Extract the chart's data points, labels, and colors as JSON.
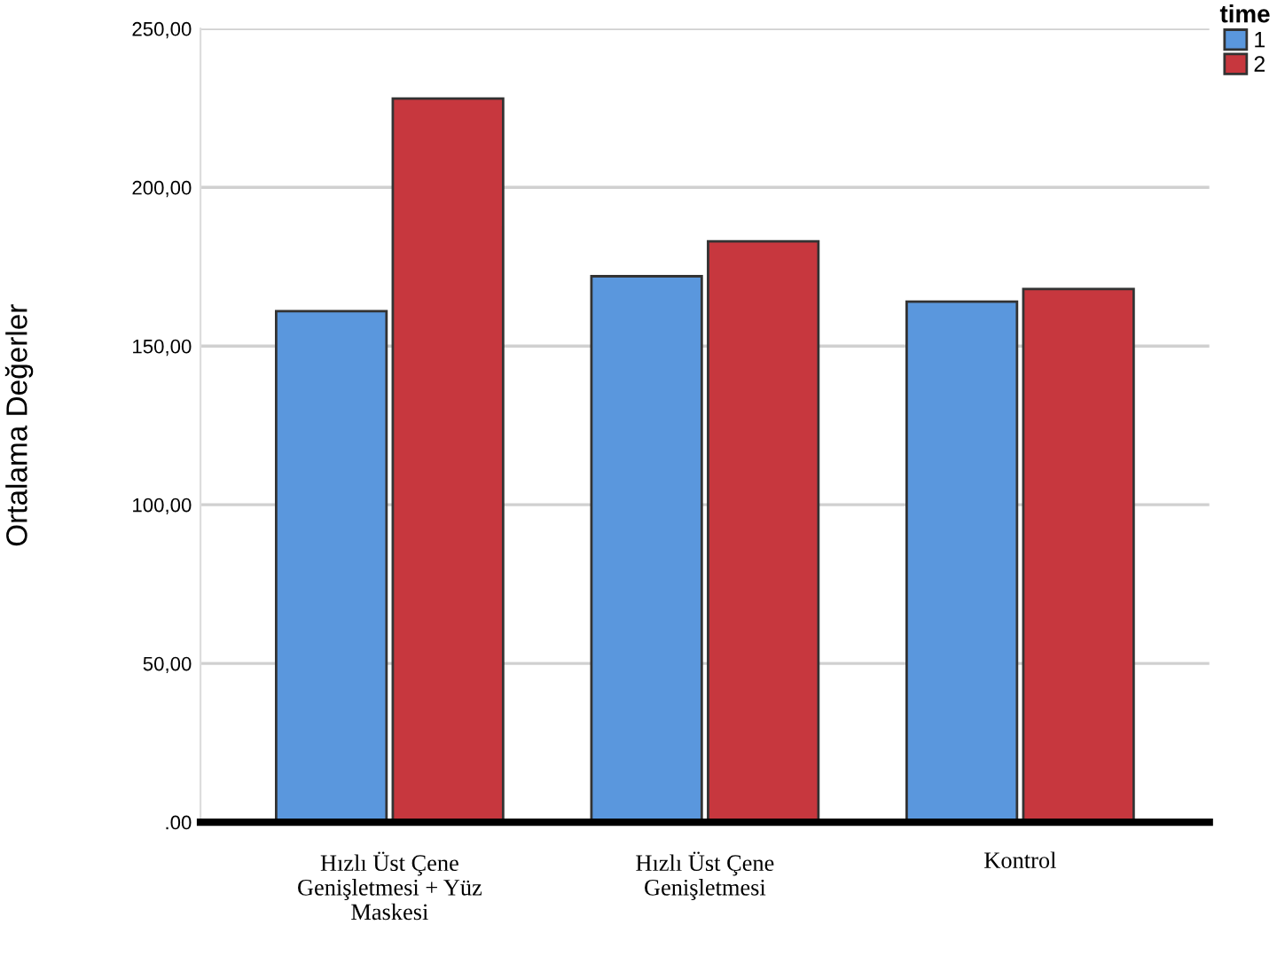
{
  "chart_data": {
    "type": "bar",
    "ylabel": "Ortalama Değerler",
    "legend_title": "time",
    "categories": [
      "Hızlı Üst Çene\nGenişletmesi + Yüz\nMaskesi",
      "Hızlı Üst Çene\nGenişletmesi",
      "Kontrol"
    ],
    "series": [
      {
        "name": "1",
        "color": "#5a97dd",
        "values": [
          161,
          172,
          164
        ]
      },
      {
        "name": "2",
        "color": "#c7373e",
        "values": [
          228,
          183,
          168
        ]
      }
    ],
    "ylim": [
      0,
      250
    ],
    "yticks": [
      {
        "value": 0,
        "label": ".00"
      },
      {
        "value": 50,
        "label": "50,00"
      },
      {
        "value": 100,
        "label": "100,00"
      },
      {
        "value": 150,
        "label": "150,00"
      },
      {
        "value": 200,
        "label": "200,00"
      },
      {
        "value": 250,
        "label": "250,00"
      }
    ],
    "grid": "y",
    "legend": "top right"
  }
}
